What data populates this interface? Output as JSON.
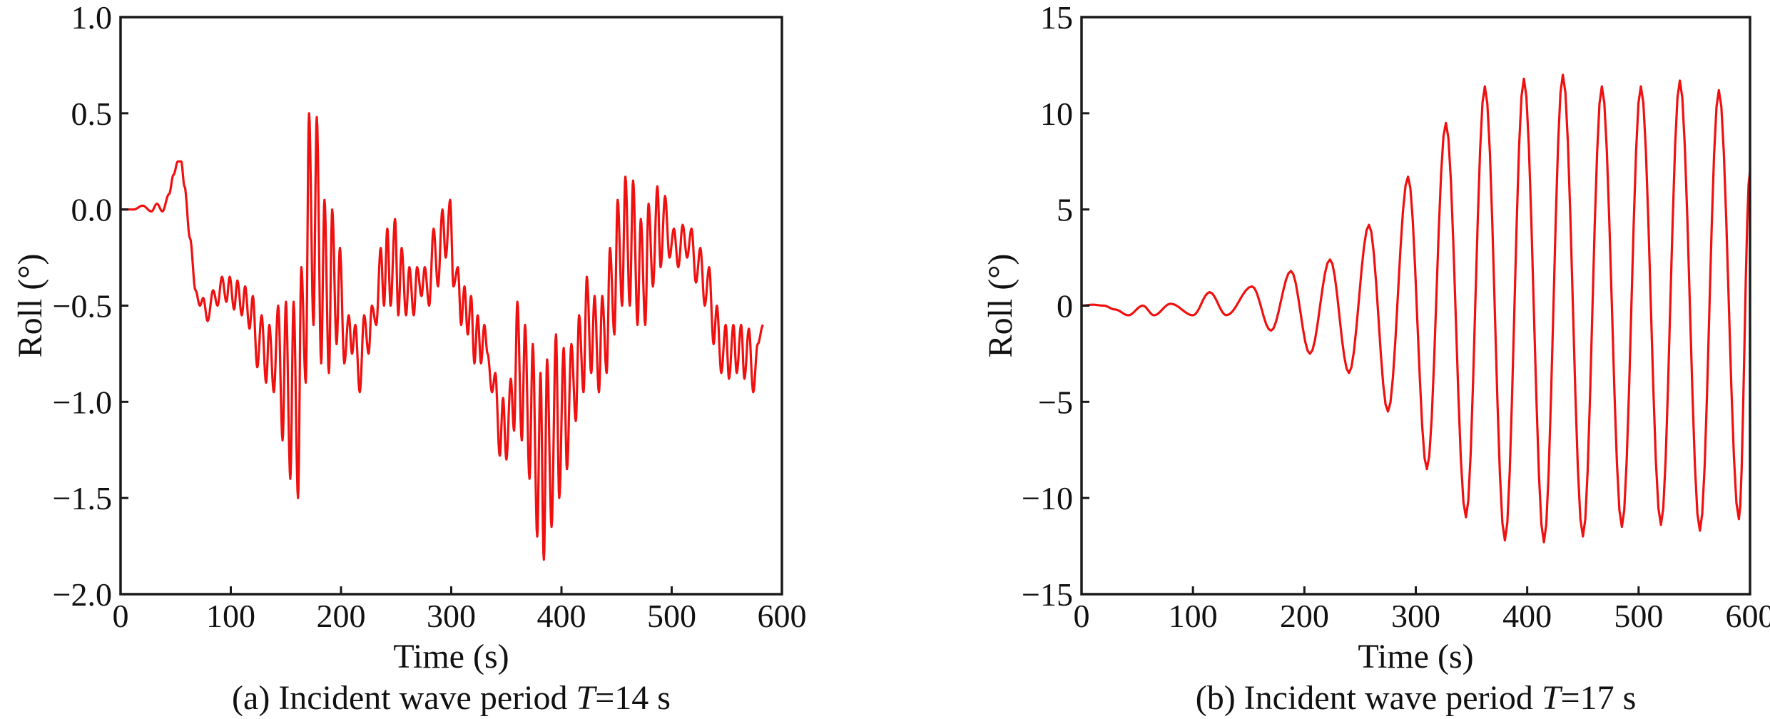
{
  "colors": {
    "line": "#f01010",
    "axis": "#1a1a1a"
  },
  "chart_data": [
    {
      "type": "line",
      "panel": "a",
      "caption_prefix": "(a) Incident wave period ",
      "caption_var": "T",
      "caption_suffix": "=14 s",
      "xlabel": "Time (s)",
      "ylabel": "Roll (°)",
      "xlim": [
        0,
        600
      ],
      "ylim": [
        -2.0,
        1.0
      ],
      "xticks": [
        "0",
        "100",
        "200",
        "300",
        "400",
        "500",
        "600"
      ],
      "yticks": [
        "−2.0",
        "−1.5",
        "−1.0",
        "−0.5",
        "0.0",
        "0.5",
        "1.0"
      ],
      "ytick_values": [
        -2.0,
        -1.5,
        -1.0,
        -0.5,
        0.0,
        0.5,
        1.0
      ],
      "xtick_values": [
        0,
        100,
        200,
        300,
        400,
        500,
        600
      ],
      "grid": false,
      "series": [
        {
          "name": "Roll",
          "extrema": [
            [
              0,
              0
            ],
            [
              12,
              0.0
            ],
            [
              20,
              0.02
            ],
            [
              28,
              -0.01
            ],
            [
              33,
              0.03
            ],
            [
              38,
              -0.01
            ],
            [
              44,
              0.08
            ],
            [
              48,
              0.18
            ],
            [
              52,
              0.25
            ],
            [
              55,
              0.25
            ],
            [
              58,
              0.12
            ],
            [
              63,
              -0.15
            ],
            [
              68,
              -0.42
            ],
            [
              72,
              -0.5
            ],
            [
              75,
              -0.46
            ],
            [
              79,
              -0.58
            ],
            [
              84,
              -0.42
            ],
            [
              88,
              -0.5
            ],
            [
              92,
              -0.35
            ],
            [
              96,
              -0.48
            ],
            [
              99,
              -0.35
            ],
            [
              103,
              -0.52
            ],
            [
              106,
              -0.37
            ],
            [
              110,
              -0.55
            ],
            [
              113,
              -0.4
            ],
            [
              117,
              -0.62
            ],
            [
              120,
              -0.45
            ],
            [
              124,
              -0.82
            ],
            [
              128,
              -0.55
            ],
            [
              132,
              -0.9
            ],
            [
              135,
              -0.6
            ],
            [
              139,
              -0.95
            ],
            [
              143,
              -0.5
            ],
            [
              147,
              -1.2
            ],
            [
              150,
              -0.48
            ],
            [
              154,
              -1.4
            ],
            [
              157,
              -0.48
            ],
            [
              161,
              -1.5
            ],
            [
              164,
              -0.3
            ],
            [
              168,
              -0.9
            ],
            [
              171,
              0.5
            ],
            [
              175,
              -0.6
            ],
            [
              178,
              0.48
            ],
            [
              182,
              -0.8
            ],
            [
              185,
              0.05
            ],
            [
              189,
              -0.85
            ],
            [
              192,
              0.0
            ],
            [
              196,
              -0.7
            ],
            [
              199,
              -0.2
            ],
            [
              203,
              -0.8
            ],
            [
              207,
              -0.55
            ],
            [
              210,
              -0.75
            ],
            [
              213,
              -0.6
            ],
            [
              217,
              -0.95
            ],
            [
              221,
              -0.55
            ],
            [
              225,
              -0.75
            ],
            [
              228,
              -0.5
            ],
            [
              232,
              -0.6
            ],
            [
              236,
              -0.2
            ],
            [
              239,
              -0.5
            ],
            [
              242,
              -0.1
            ],
            [
              245,
              -0.5
            ],
            [
              249,
              -0.05
            ],
            [
              252,
              -0.55
            ],
            [
              255,
              -0.2
            ],
            [
              259,
              -0.55
            ],
            [
              262,
              -0.3
            ],
            [
              266,
              -0.55
            ],
            [
              269,
              -0.3
            ],
            [
              273,
              -0.45
            ],
            [
              276,
              -0.3
            ],
            [
              280,
              -0.5
            ],
            [
              284,
              -0.1
            ],
            [
              288,
              -0.4
            ],
            [
              292,
              0.0
            ],
            [
              295,
              -0.25
            ],
            [
              299,
              0.05
            ],
            [
              302,
              -0.4
            ],
            [
              306,
              -0.3
            ],
            [
              309,
              -0.6
            ],
            [
              312,
              -0.4
            ],
            [
              315,
              -0.65
            ],
            [
              318,
              -0.45
            ],
            [
              321,
              -0.8
            ],
            [
              324,
              -0.55
            ],
            [
              327,
              -0.8
            ],
            [
              330,
              -0.6
            ],
            [
              333,
              -0.75
            ],
            [
              337,
              -0.95
            ],
            [
              340,
              -0.85
            ],
            [
              344,
              -1.28
            ],
            [
              347,
              -0.98
            ],
            [
              350,
              -1.3
            ],
            [
              354,
              -0.88
            ],
            [
              357,
              -1.15
            ],
            [
              360,
              -0.48
            ],
            [
              364,
              -1.2
            ],
            [
              367,
              -0.6
            ],
            [
              371,
              -1.4
            ],
            [
              374,
              -0.7
            ],
            [
              378,
              -1.7
            ],
            [
              381,
              -0.85
            ],
            [
              384,
              -1.82
            ],
            [
              387,
              -0.78
            ],
            [
              391,
              -1.65
            ],
            [
              395,
              -0.65
            ],
            [
              398,
              -1.5
            ],
            [
              402,
              -0.72
            ],
            [
              405,
              -1.35
            ],
            [
              409,
              -0.7
            ],
            [
              413,
              -1.1
            ],
            [
              416,
              -0.55
            ],
            [
              420,
              -0.95
            ],
            [
              423,
              -0.35
            ],
            [
              427,
              -0.85
            ],
            [
              430,
              -0.45
            ],
            [
              434,
              -0.95
            ],
            [
              437,
              -0.45
            ],
            [
              441,
              -0.85
            ],
            [
              444,
              -0.2
            ],
            [
              448,
              -0.65
            ],
            [
              451,
              0.05
            ],
            [
              455,
              -0.5
            ],
            [
              458,
              0.17
            ],
            [
              462,
              -0.5
            ],
            [
              465,
              0.15
            ],
            [
              469,
              -0.6
            ],
            [
              472,
              -0.05
            ],
            [
              476,
              -0.6
            ],
            [
              479,
              0.03
            ],
            [
              483,
              -0.4
            ],
            [
              487,
              0.12
            ],
            [
              490,
              -0.3
            ],
            [
              494,
              0.07
            ],
            [
              498,
              -0.25
            ],
            [
              502,
              -0.1
            ],
            [
              506,
              -0.3
            ],
            [
              510,
              -0.08
            ],
            [
              514,
              -0.25
            ],
            [
              518,
              -0.1
            ],
            [
              522,
              -0.38
            ],
            [
              526,
              -0.2
            ],
            [
              530,
              -0.5
            ],
            [
              534,
              -0.3
            ],
            [
              538,
              -0.7
            ],
            [
              541,
              -0.5
            ],
            [
              545,
              -0.85
            ],
            [
              549,
              -0.6
            ],
            [
              552,
              -0.88
            ],
            [
              556,
              -0.6
            ],
            [
              559,
              -0.85
            ],
            [
              563,
              -0.6
            ],
            [
              566,
              -0.88
            ],
            [
              570,
              -0.62
            ],
            [
              574,
              -0.95
            ],
            [
              578,
              -0.7
            ],
            [
              583,
              -0.6
            ]
          ]
        }
      ]
    },
    {
      "type": "line",
      "panel": "b",
      "caption_prefix": "(b) Incident wave period ",
      "caption_var": "T",
      "caption_suffix": "=17 s",
      "xlabel": "Time (s)",
      "ylabel": "Roll (°)",
      "xlim": [
        0,
        600
      ],
      "ylim": [
        -15,
        15
      ],
      "xticks": [
        "0",
        "100",
        "200",
        "300",
        "400",
        "500",
        "600"
      ],
      "yticks": [
        "−15",
        "−10",
        "−5",
        "0",
        "5",
        "10",
        "15"
      ],
      "ytick_values": [
        -15,
        -10,
        -5,
        0,
        5,
        10,
        15
      ],
      "xtick_values": [
        0,
        100,
        200,
        300,
        400,
        500,
        600
      ],
      "grid": false,
      "series": [
        {
          "name": "Roll",
          "extrema": [
            [
              0,
              0
            ],
            [
              10,
              0.05
            ],
            [
              20,
              0.0
            ],
            [
              30,
              -0.2
            ],
            [
              42,
              -0.5
            ],
            [
              55,
              0.0
            ],
            [
              65,
              -0.5
            ],
            [
              80,
              0.1
            ],
            [
              100,
              -0.5
            ],
            [
              115,
              0.7
            ],
            [
              130,
              -0.5
            ],
            [
              153,
              1.0
            ],
            [
              170,
              -1.3
            ],
            [
              188,
              1.8
            ],
            [
              205,
              -2.5
            ],
            [
              223,
              2.4
            ],
            [
              240,
              -3.5
            ],
            [
              258,
              4.2
            ],
            [
              275,
              -5.5
            ],
            [
              293,
              6.7
            ],
            [
              310,
              -8.5
            ],
            [
              327,
              9.5
            ],
            [
              345,
              -11.0
            ],
            [
              362,
              11.4
            ],
            [
              380,
              -12.2
            ],
            [
              397,
              11.8
            ],
            [
              415,
              -12.3
            ],
            [
              432,
              12.0
            ],
            [
              450,
              -12.0
            ],
            [
              467,
              11.4
            ],
            [
              485,
              -11.5
            ],
            [
              502,
              11.4
            ],
            [
              520,
              -11.4
            ],
            [
              537,
              11.7
            ],
            [
              555,
              -11.7
            ],
            [
              572,
              11.2
            ],
            [
              590,
              -11.1
            ],
            [
              600,
              7.0
            ]
          ]
        }
      ]
    }
  ]
}
